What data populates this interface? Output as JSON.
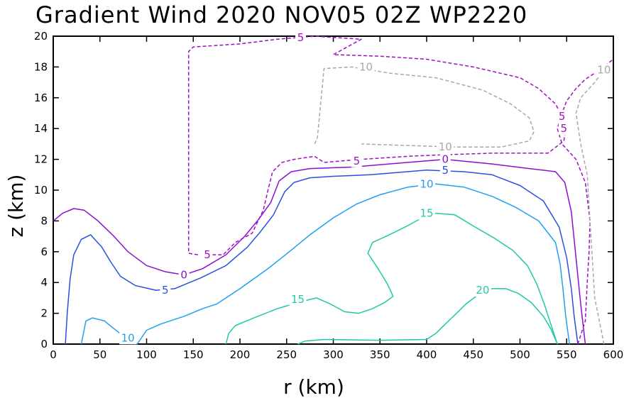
{
  "chart_data": {
    "type": "contour",
    "title": "Gradient Wind 2020 NOV05 02Z  WP2220",
    "xlabel": "r (km)",
    "ylabel": "z (km)",
    "xlim": [
      0,
      600
    ],
    "ylim": [
      0,
      20
    ],
    "xticks": [
      0,
      50,
      100,
      150,
      200,
      250,
      300,
      350,
      400,
      450,
      500,
      550,
      600
    ],
    "yticks": [
      0,
      2,
      4,
      6,
      8,
      10,
      12,
      14,
      16,
      18,
      20
    ],
    "contours": [
      {
        "level": 20,
        "label": "20",
        "color": "#20c8a8",
        "dashed": false,
        "points": [
          [
            262,
            0
          ],
          [
            270,
            0.2
          ],
          [
            290,
            0.3
          ],
          [
            350,
            0.25
          ],
          [
            400,
            0.3
          ],
          [
            410,
            0.7
          ],
          [
            420,
            1.3
          ],
          [
            432,
            2.0
          ],
          [
            442,
            2.6
          ],
          [
            455,
            3.2
          ],
          [
            470,
            3.6
          ],
          [
            485,
            3.6
          ],
          [
            498,
            3.3
          ],
          [
            512,
            2.7
          ],
          [
            525,
            1.8
          ],
          [
            533,
            1.0
          ],
          [
            540,
            0
          ]
        ],
        "labels": [
          {
            "text": "20",
            "x": 460,
            "y": 3.5
          }
        ]
      },
      {
        "level": 15,
        "label": "15",
        "color": "#20c8a8",
        "dashed": false,
        "points": [
          [
            185,
            0
          ],
          [
            188,
            0.7
          ],
          [
            195,
            1.2
          ],
          [
            215,
            1.7
          ],
          [
            240,
            2.3
          ],
          [
            262,
            2.7
          ],
          [
            282,
            3.0
          ],
          [
            297,
            2.6
          ],
          [
            312,
            2.1
          ],
          [
            327,
            2.0
          ],
          [
            342,
            2.3
          ],
          [
            355,
            2.7
          ],
          [
            364,
            3.1
          ],
          [
            358,
            3.9
          ],
          [
            348,
            4.9
          ],
          [
            337,
            5.9
          ],
          [
            342,
            6.6
          ],
          [
            360,
            7.1
          ],
          [
            380,
            7.7
          ],
          [
            395,
            8.2
          ],
          [
            410,
            8.5
          ],
          [
            430,
            8.4
          ],
          [
            452,
            7.6
          ],
          [
            472,
            6.9
          ],
          [
            492,
            6.1
          ],
          [
            508,
            5.1
          ],
          [
            518,
            3.9
          ],
          [
            526,
            2.6
          ],
          [
            533,
            1.3
          ],
          [
            540,
            0
          ]
        ],
        "labels": [
          {
            "text": "15",
            "x": 262,
            "y": 2.9
          },
          {
            "text": "15",
            "x": 400,
            "y": 8.5
          }
        ]
      },
      {
        "level": 10,
        "label": "10",
        "color": "#1ea0f0",
        "dashed": false,
        "points": [
          [
            30,
            0
          ],
          [
            35,
            1.5
          ],
          [
            42,
            1.7
          ],
          [
            55,
            1.5
          ],
          [
            65,
            1.0
          ],
          [
            82,
            0.2
          ],
          [
            90,
            0
          ],
          [
            100,
            0.9
          ],
          [
            115,
            1.3
          ],
          [
            140,
            1.8
          ],
          [
            160,
            2.3
          ],
          [
            175,
            2.6
          ],
          [
            200,
            3.6
          ],
          [
            230,
            4.9
          ],
          [
            255,
            6.1
          ],
          [
            275,
            7.1
          ],
          [
            300,
            8.2
          ],
          [
            325,
            9.1
          ],
          [
            350,
            9.7
          ],
          [
            380,
            10.2
          ],
          [
            410,
            10.4
          ],
          [
            440,
            10.2
          ],
          [
            470,
            9.6
          ],
          [
            495,
            8.9
          ],
          [
            520,
            8.0
          ],
          [
            538,
            6.6
          ],
          [
            543,
            5.2
          ],
          [
            546,
            3.6
          ],
          [
            549,
            1.8
          ],
          [
            553,
            0
          ]
        ],
        "labels": [
          {
            "text": "10",
            "x": 80,
            "y": 0.4
          },
          {
            "text": "10",
            "x": 400,
            "y": 10.4
          }
        ]
      },
      {
        "level": 5,
        "label": "5",
        "color": "#2850e0",
        "dashed": false,
        "points": [
          [
            13,
            0
          ],
          [
            15,
            2.0
          ],
          [
            18,
            4.2
          ],
          [
            22,
            5.8
          ],
          [
            30,
            6.8
          ],
          [
            40,
            7.1
          ],
          [
            52,
            6.3
          ],
          [
            62,
            5.3
          ],
          [
            72,
            4.4
          ],
          [
            88,
            3.8
          ],
          [
            110,
            3.5
          ],
          [
            130,
            3.6
          ],
          [
            158,
            4.3
          ],
          [
            185,
            5.1
          ],
          [
            208,
            6.3
          ],
          [
            222,
            7.3
          ],
          [
            236,
            8.4
          ],
          [
            248,
            9.9
          ],
          [
            258,
            10.5
          ],
          [
            275,
            10.8
          ],
          [
            300,
            10.9
          ],
          [
            340,
            11.0
          ],
          [
            400,
            11.3
          ],
          [
            440,
            11.2
          ],
          [
            470,
            11.0
          ],
          [
            500,
            10.3
          ],
          [
            525,
            9.3
          ],
          [
            542,
            7.6
          ],
          [
            550,
            5.6
          ],
          [
            555,
            3.6
          ],
          [
            558,
            1.8
          ],
          [
            562,
            0
          ]
        ],
        "labels": [
          {
            "text": "5",
            "x": 120,
            "y": 3.5
          },
          {
            "text": "5",
            "x": 420,
            "y": 11.3
          }
        ]
      },
      {
        "level": 0,
        "label": "0",
        "color": "#8c10d0",
        "dashed": false,
        "points": [
          [
            0,
            8.0
          ],
          [
            10,
            8.5
          ],
          [
            22,
            8.8
          ],
          [
            33,
            8.7
          ],
          [
            48,
            8.0
          ],
          [
            65,
            7.0
          ],
          [
            80,
            6.0
          ],
          [
            100,
            5.1
          ],
          [
            120,
            4.7
          ],
          [
            140,
            4.5
          ],
          [
            160,
            4.9
          ],
          [
            185,
            5.8
          ],
          [
            205,
            7.0
          ],
          [
            220,
            8.1
          ],
          [
            233,
            9.2
          ],
          [
            242,
            10.6
          ],
          [
            255,
            11.2
          ],
          [
            275,
            11.4
          ],
          [
            320,
            11.5
          ],
          [
            380,
            11.8
          ],
          [
            420,
            12.0
          ],
          [
            470,
            11.7
          ],
          [
            510,
            11.4
          ],
          [
            538,
            11.2
          ],
          [
            548,
            10.5
          ],
          [
            555,
            8.6
          ],
          [
            560,
            5.6
          ],
          [
            565,
            2.6
          ],
          [
            570,
            0
          ]
        ],
        "labels": [
          {
            "text": "0",
            "x": 140,
            "y": 4.5
          },
          {
            "text": "0",
            "x": 420,
            "y": 12.0
          }
        ]
      },
      {
        "level": -5,
        "label": "5",
        "color": "#a010c0",
        "dashed": true,
        "points": [
          [
            562,
            0
          ],
          [
            570,
            1.5
          ],
          [
            572,
            4
          ],
          [
            574,
            6
          ],
          [
            575,
            8
          ],
          [
            570,
            10.5
          ],
          [
            560,
            12.0
          ],
          [
            545,
            13.0
          ],
          [
            540,
            14.0
          ],
          [
            545,
            15.0
          ],
          [
            550,
            15.8
          ],
          [
            560,
            16.6
          ],
          [
            570,
            17.2
          ],
          [
            585,
            17.8
          ],
          [
            600,
            18.5
          ]
        ],
        "labels": [
          {
            "text": "5",
            "x": 547,
            "y": 14.0
          }
        ]
      },
      {
        "level": -5,
        "label": "5",
        "color": "#a010c0",
        "dashed": true,
        "points": [
          [
            155,
            5.8
          ],
          [
            145,
            5.9
          ],
          [
            145,
            12.0
          ],
          [
            145,
            19.0
          ],
          [
            150,
            19.3
          ],
          [
            200,
            19.5
          ],
          [
            240,
            19.8
          ],
          [
            280,
            20.0
          ],
          [
            330,
            19.8
          ],
          [
            300,
            18.8
          ],
          [
            350,
            18.7
          ],
          [
            400,
            18.5
          ],
          [
            450,
            18.0
          ],
          [
            500,
            17.3
          ],
          [
            520,
            16.6
          ],
          [
            538,
            15.6
          ],
          [
            545,
            14.8
          ],
          [
            549,
            14.0
          ],
          [
            547,
            13.2
          ],
          [
            530,
            12.4
          ],
          [
            510,
            12.4
          ],
          [
            470,
            12.4
          ],
          [
            420,
            12.3
          ],
          [
            380,
            12.2
          ],
          [
            330,
            12.0
          ],
          [
            290,
            11.8
          ],
          [
            280,
            12.2
          ],
          [
            258,
            12.0
          ],
          [
            245,
            11.8
          ],
          [
            235,
            11.2
          ],
          [
            230,
            10.0
          ],
          [
            225,
            8.7
          ],
          [
            213,
            7.2
          ],
          [
            195,
            6.6
          ],
          [
            182,
            5.8
          ],
          [
            170,
            5.8
          ]
        ],
        "labels": [
          {
            "text": "5",
            "x": 165,
            "y": 5.8
          },
          {
            "text": "5",
            "x": 325,
            "y": 11.9
          },
          {
            "text": "5",
            "x": 265,
            "y": 19.9
          },
          {
            "text": "5",
            "x": 545,
            "y": 14.8
          }
        ]
      },
      {
        "level": -10,
        "label": "10",
        "color": "#a8a8a8",
        "dashed": true,
        "points": [
          [
            280,
            13.0
          ],
          [
            283,
            13.4
          ],
          [
            290,
            17.9
          ],
          [
            320,
            18.0
          ],
          [
            360,
            17.6
          ],
          [
            410,
            17.3
          ],
          [
            460,
            16.5
          ],
          [
            490,
            15.6
          ],
          [
            510,
            14.7
          ],
          [
            515,
            13.8
          ],
          [
            510,
            13.2
          ],
          [
            480,
            12.8
          ],
          [
            430,
            12.8
          ],
          [
            380,
            12.9
          ],
          [
            330,
            13.0
          ]
        ],
        "labels": [
          {
            "text": "10",
            "x": 335,
            "y": 18.0
          },
          {
            "text": "10",
            "x": 420,
            "y": 12.8
          }
        ]
      },
      {
        "level": -10,
        "label": "10",
        "color": "#a8a8a8",
        "dashed": true,
        "points": [
          [
            590,
            0
          ],
          [
            585,
            1.5
          ],
          [
            580,
            3
          ],
          [
            578,
            5
          ],
          [
            576,
            7
          ],
          [
            574,
            9
          ],
          [
            572,
            11
          ],
          [
            565,
            13
          ],
          [
            560,
            15
          ],
          [
            565,
            16
          ],
          [
            580,
            17
          ],
          [
            590,
            17.8
          ],
          [
            600,
            18.0
          ]
        ],
        "labels": [
          {
            "text": "10",
            "x": 590,
            "y": 17.8
          }
        ]
      }
    ]
  }
}
